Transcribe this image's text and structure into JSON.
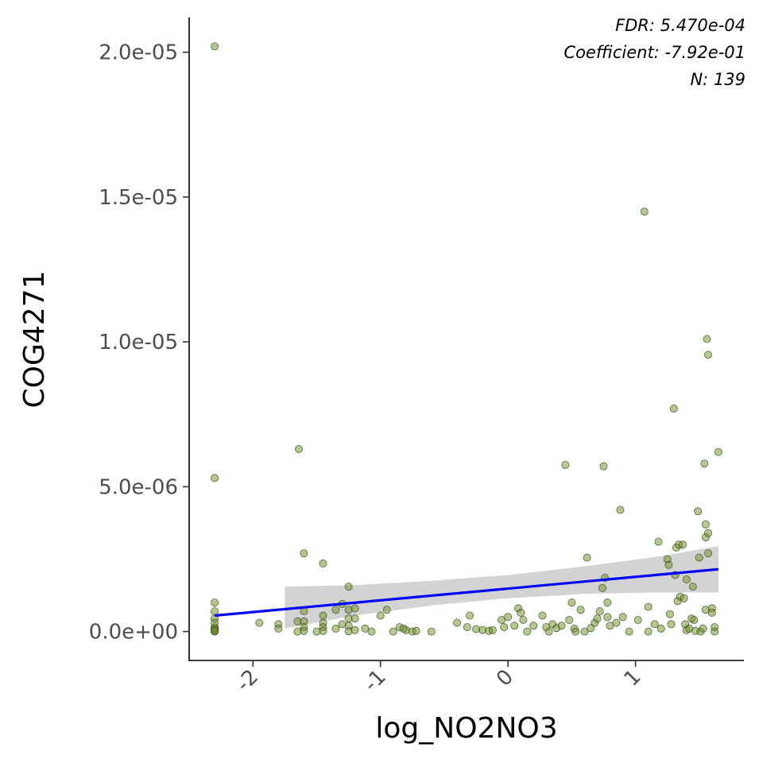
{
  "chart_data": {
    "type": "scatter",
    "xlabel": "log_NO2NO3",
    "ylabel": "COG4271",
    "xlim": [
      -2.5,
      1.85
    ],
    "ylim": [
      -1e-06,
      2.12e-05
    ],
    "x_ticks": [
      -2,
      -1,
      0,
      1
    ],
    "x_tick_labels": [
      "-2",
      "-1",
      "0",
      "1"
    ],
    "y_ticks": [
      0,
      5e-06,
      1e-05,
      1.5e-05,
      2e-05
    ],
    "y_tick_labels": [
      "0.0e+00",
      "5.0e-06",
      "1.0e-05",
      "1.5e-05",
      "2.0e-05"
    ],
    "grid": false,
    "annotations": [
      "FDR: 5.470e-04",
      "Coefficient: -7.92e-01",
      "N: 139"
    ],
    "point_color": "#6b8e23",
    "line_color": "#0000ff",
    "band_color": "#d3d3d3",
    "fit_line": {
      "x": [
        -2.3,
        1.65
      ],
      "y": [
        5.5e-07,
        2.15e-06
      ]
    },
    "confidence_band": {
      "x": [
        -1.75,
        -1.2,
        -0.6,
        0.0,
        0.6,
        1.2,
        1.65
      ],
      "lower": [
        1e-07,
        5.5e-07,
        9e-07,
        1.15e-06,
        1.3e-06,
        1.35e-06,
        1.35e-06
      ],
      "upper": [
        1.55e-06,
        1.6e-06,
        1.75e-06,
        1.95e-06,
        2.25e-06,
        2.6e-06,
        2.95e-06
      ]
    },
    "points": [
      [
        -2.3,
        2.02e-05
      ],
      [
        -2.3,
        5.3e-06
      ],
      [
        -2.3,
        1e-06
      ],
      [
        -2.3,
        7e-07
      ],
      [
        -2.3,
        4.5e-07
      ],
      [
        -2.3,
        1.5e-07
      ],
      [
        -2.3,
        5e-08
      ],
      [
        -2.3,
        0
      ],
      [
        -2.3,
        1e-07
      ],
      [
        -2.3,
        2e-08
      ],
      [
        -1.64,
        6.3e-06
      ],
      [
        -1.6,
        2.7e-06
      ],
      [
        -1.45,
        2.35e-06
      ],
      [
        -1.6,
        7e-07
      ],
      [
        -1.65,
        3.5e-07
      ],
      [
        -1.6,
        3.5e-07
      ],
      [
        -1.6,
        1.5e-07
      ],
      [
        -1.6,
        2e-08
      ],
      [
        -1.8,
        2.5e-07
      ],
      [
        -1.8,
        1e-07
      ],
      [
        -1.45,
        5.5e-07
      ],
      [
        -1.45,
        3e-07
      ],
      [
        -1.45,
        1.5e-07
      ],
      [
        -1.45,
        2e-08
      ],
      [
        -1.5,
        0
      ],
      [
        -1.35,
        7.5e-07
      ],
      [
        -1.3,
        9.5e-07
      ],
      [
        -1.25,
        1.55e-06
      ],
      [
        -1.25,
        7.5e-07
      ],
      [
        -1.25,
        4.5e-07
      ],
      [
        -1.25,
        2e-07
      ],
      [
        -1.25,
        1e-08
      ],
      [
        -1.35,
        1e-07
      ],
      [
        -1.2,
        8e-07
      ],
      [
        -1.2,
        4.5e-07
      ],
      [
        -1.2,
        5e-08
      ],
      [
        -1.07,
        0
      ],
      [
        -1.0,
        5.5e-07
      ],
      [
        -0.95,
        7.5e-07
      ],
      [
        -0.9,
        0
      ],
      [
        -0.85,
        1.5e-07
      ],
      [
        -0.8,
        5e-08
      ],
      [
        -0.75,
        0
      ],
      [
        -0.72,
        2e-08
      ],
      [
        -0.82,
        1e-07
      ],
      [
        -0.3,
        5.5e-07
      ],
      [
        -0.32,
        1.5e-07
      ],
      [
        -0.2,
        5e-08
      ],
      [
        -0.15,
        2e-08
      ],
      [
        -0.12,
        5e-08
      ],
      [
        -0.05,
        4e-07
      ],
      [
        -0.03,
        1.5e-07
      ],
      [
        0.0,
        5e-07
      ],
      [
        0.05,
        2e-07
      ],
      [
        0.08,
        8e-07
      ],
      [
        0.1,
        6.5e-07
      ],
      [
        0.12,
        4e-07
      ],
      [
        0.27,
        5.5e-07
      ],
      [
        0.3,
        1.5e-07
      ],
      [
        0.32,
        0
      ],
      [
        0.35,
        2.5e-07
      ],
      [
        0.38,
        1.2e-07
      ],
      [
        0.45,
        5.75e-06
      ],
      [
        0.42,
        2e-07
      ],
      [
        0.5,
        1e-06
      ],
      [
        0.52,
        1e-07
      ],
      [
        0.53,
        0
      ],
      [
        0.57,
        7.5e-07
      ],
      [
        0.62,
        2.55e-06
      ],
      [
        0.65,
        1.2e-07
      ],
      [
        0.68,
        3e-07
      ],
      [
        0.7,
        4.5e-07
      ],
      [
        0.72,
        7e-07
      ],
      [
        0.74,
        1.5e-06
      ],
      [
        0.75,
        5.7e-06
      ],
      [
        0.76,
        1.85e-06
      ],
      [
        0.78,
        1e-06
      ],
      [
        0.78,
        5e-07
      ],
      [
        0.8,
        2e-07
      ],
      [
        0.85,
        3e-07
      ],
      [
        0.88,
        4.2e-06
      ],
      [
        0.9,
        5e-07
      ],
      [
        1.02,
        4e-07
      ],
      [
        1.07,
        1.45e-05
      ],
      [
        1.1,
        8.5e-07
      ],
      [
        1.1,
        0
      ],
      [
        1.18,
        3.1e-06
      ],
      [
        1.25,
        2.5e-06
      ],
      [
        1.26,
        2.3e-06
      ],
      [
        1.27,
        6e-07
      ],
      [
        1.28,
        2.5e-07
      ],
      [
        1.3,
        7.7e-06
      ],
      [
        1.31,
        1.95e-06
      ],
      [
        1.32,
        2.9e-06
      ],
      [
        1.33,
        1.05e-06
      ],
      [
        1.34,
        3e-06
      ],
      [
        1.35,
        1.2e-06
      ],
      [
        1.37,
        3e-06
      ],
      [
        1.38,
        1.15e-06
      ],
      [
        1.39,
        2.5e-07
      ],
      [
        1.4,
        5e-08
      ],
      [
        1.42,
        1e-07
      ],
      [
        1.44,
        4.5e-07
      ],
      [
        1.45,
        1.55e-06
      ],
      [
        1.46,
        4e-07
      ],
      [
        1.47,
        2e-08
      ],
      [
        1.49,
        4.15e-06
      ],
      [
        1.5,
        2.55e-06
      ],
      [
        1.51,
        0
      ],
      [
        1.54,
        5.8e-06
      ],
      [
        1.55,
        3.7e-06
      ],
      [
        1.55,
        3.25e-06
      ],
      [
        1.55,
        7.5e-07
      ],
      [
        1.56,
        1.01e-05
      ],
      [
        1.57,
        9.55e-06
      ],
      [
        1.57,
        3.4e-06
      ],
      [
        1.57,
        2.7e-06
      ],
      [
        1.6,
        8e-07
      ],
      [
        1.6,
        6.5e-07
      ],
      [
        1.65,
        6.2e-06
      ],
      [
        1.62,
        1.5e-07
      ],
      [
        1.62,
        0
      ],
      [
        -2.3,
        3e-07
      ],
      [
        -1.65,
        0
      ],
      [
        -1.3,
        2.5e-07
      ],
      [
        -1.12,
        1e-07
      ],
      [
        -0.6,
        0
      ],
      [
        -0.4,
        3e-07
      ],
      [
        0.15,
        0
      ],
      [
        0.2,
        2e-07
      ],
      [
        0.6,
        0
      ],
      [
        0.95,
        0
      ],
      [
        1.15,
        2.5e-07
      ],
      [
        1.4,
        1.8e-06
      ],
      [
        1.53,
        1e-07
      ],
      [
        -1.95,
        3e-07
      ],
      [
        0.48,
        4e-07
      ],
      [
        -0.25,
        8e-08
      ],
      [
        1.2,
        1e-07
      ]
    ]
  }
}
